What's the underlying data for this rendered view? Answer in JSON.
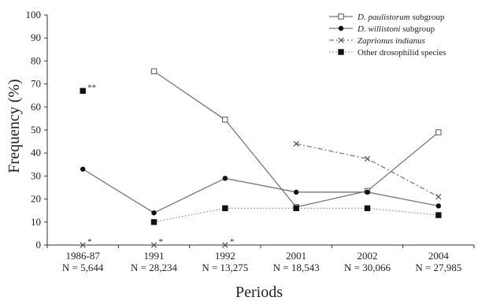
{
  "chart_data": {
    "type": "line",
    "title": "",
    "xlabel": "Periods",
    "ylabel": "Frequency (%)",
    "ylim": [
      0,
      100
    ],
    "yticks": [
      0,
      10,
      20,
      30,
      40,
      50,
      60,
      70,
      80,
      90,
      100
    ],
    "grid": false,
    "legend_position": "top-right",
    "categories": [
      {
        "period": "1986-87",
        "n": "N = 5,644"
      },
      {
        "period": "1991",
        "n": "N = 28,234"
      },
      {
        "period": "1992",
        "n": "N = 13,275"
      },
      {
        "period": "2001",
        "n": "N = 18,543"
      },
      {
        "period": "2002",
        "n": "N = 30,066"
      },
      {
        "period": "2004",
        "n": "N = 27,985"
      }
    ],
    "series": [
      {
        "name_italic": "D. paulistorum",
        "name_suffix": " subgroup",
        "style": "solid",
        "marker": "open-square",
        "color": "#777777",
        "values": [
          null,
          75.5,
          54.5,
          16.5,
          23.5,
          49
        ]
      },
      {
        "name_italic": "D. willistoni",
        "name_suffix": " subgroup",
        "style": "solid",
        "marker": "filled-circle",
        "color": "#777777",
        "values": [
          33,
          14,
          29,
          23,
          23,
          17
        ]
      },
      {
        "name_italic": "Zaprionus indianus",
        "name_suffix": "",
        "style": "dashdot",
        "marker": "x",
        "color": "#777777",
        "values": [
          0,
          0,
          0,
          44,
          37.5,
          21
        ]
      },
      {
        "name_italic": "",
        "name_suffix": "Other drosophilid species",
        "style": "dotted",
        "marker": "filled-square",
        "color": "#aaaaaa",
        "values": [
          67,
          10,
          16,
          16,
          16,
          13
        ]
      }
    ],
    "annotations": [
      {
        "text": "**",
        "category_index": 0,
        "y": 67
      },
      {
        "text": "*",
        "category_index": 0,
        "y": 0
      },
      {
        "text": "*",
        "category_index": 1,
        "y": 0
      },
      {
        "text": "*",
        "category_index": 2,
        "y": 0
      }
    ],
    "connect_from_index": {
      "Zaprionus indianus": 3,
      "Other drosophilid species": 1
    }
  }
}
